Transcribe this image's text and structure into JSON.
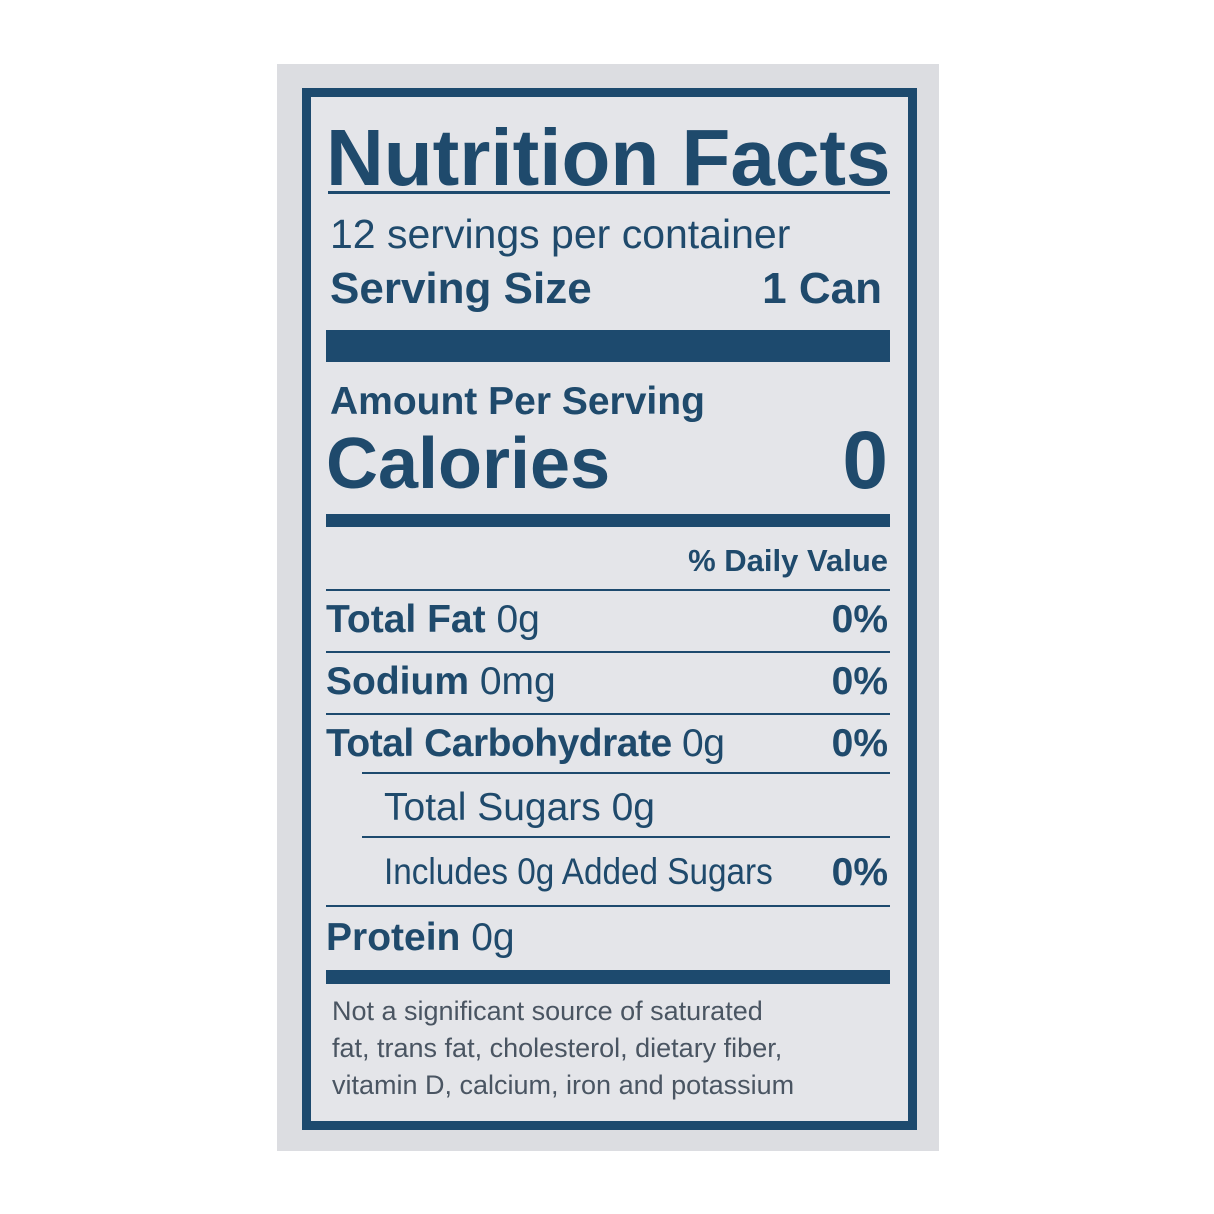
{
  "title": "Nutrition Facts",
  "servings_per_container": "12 servings per container",
  "serving_size": {
    "label": "Serving Size",
    "value": "1 Can"
  },
  "amount_per_serving": "Amount Per Serving",
  "calories": {
    "label": "Calories",
    "value": "0"
  },
  "daily_value_header": "% Daily Value",
  "nutrients": [
    {
      "name": "Total Fat",
      "amount": "0g",
      "dv": "0%"
    },
    {
      "name": "Sodium",
      "amount": "0mg",
      "dv": "0%"
    },
    {
      "name": "Total Carbohydrate",
      "amount": "0g",
      "dv": "0%"
    },
    {
      "name": "Total Sugars 0g",
      "amount": "",
      "dv": ""
    },
    {
      "name": "Includes 0g Added Sugars",
      "amount": "",
      "dv": "0%"
    },
    {
      "name": "Protein",
      "amount": "0g",
      "dv": ""
    }
  ],
  "footnote": [
    "Not a significant source of saturated",
    "fat, trans fat, cholesterol, dietary fiber,",
    "vitamin D, calcium, iron and potassium"
  ],
  "colors": {
    "ink": "#1d4a6e",
    "panel": "#dcdde1",
    "label_bg": "#e4e5e9"
  }
}
